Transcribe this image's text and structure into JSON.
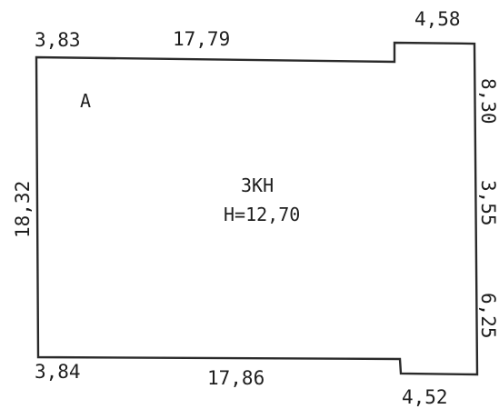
{
  "plan": {
    "block_label": "A",
    "building": {
      "type": "3КН",
      "height": "Н=12,70"
    },
    "dimensions": {
      "top_left": "3,83",
      "top_main": "17,79",
      "top_right": "4,58",
      "left": "18,32",
      "right_top": "8,30",
      "right_middle": "3,55",
      "right_bottom": "6,25",
      "bottom_left": "3,84",
      "bottom_main": "17,86",
      "bottom_right": "4,52"
    }
  }
}
